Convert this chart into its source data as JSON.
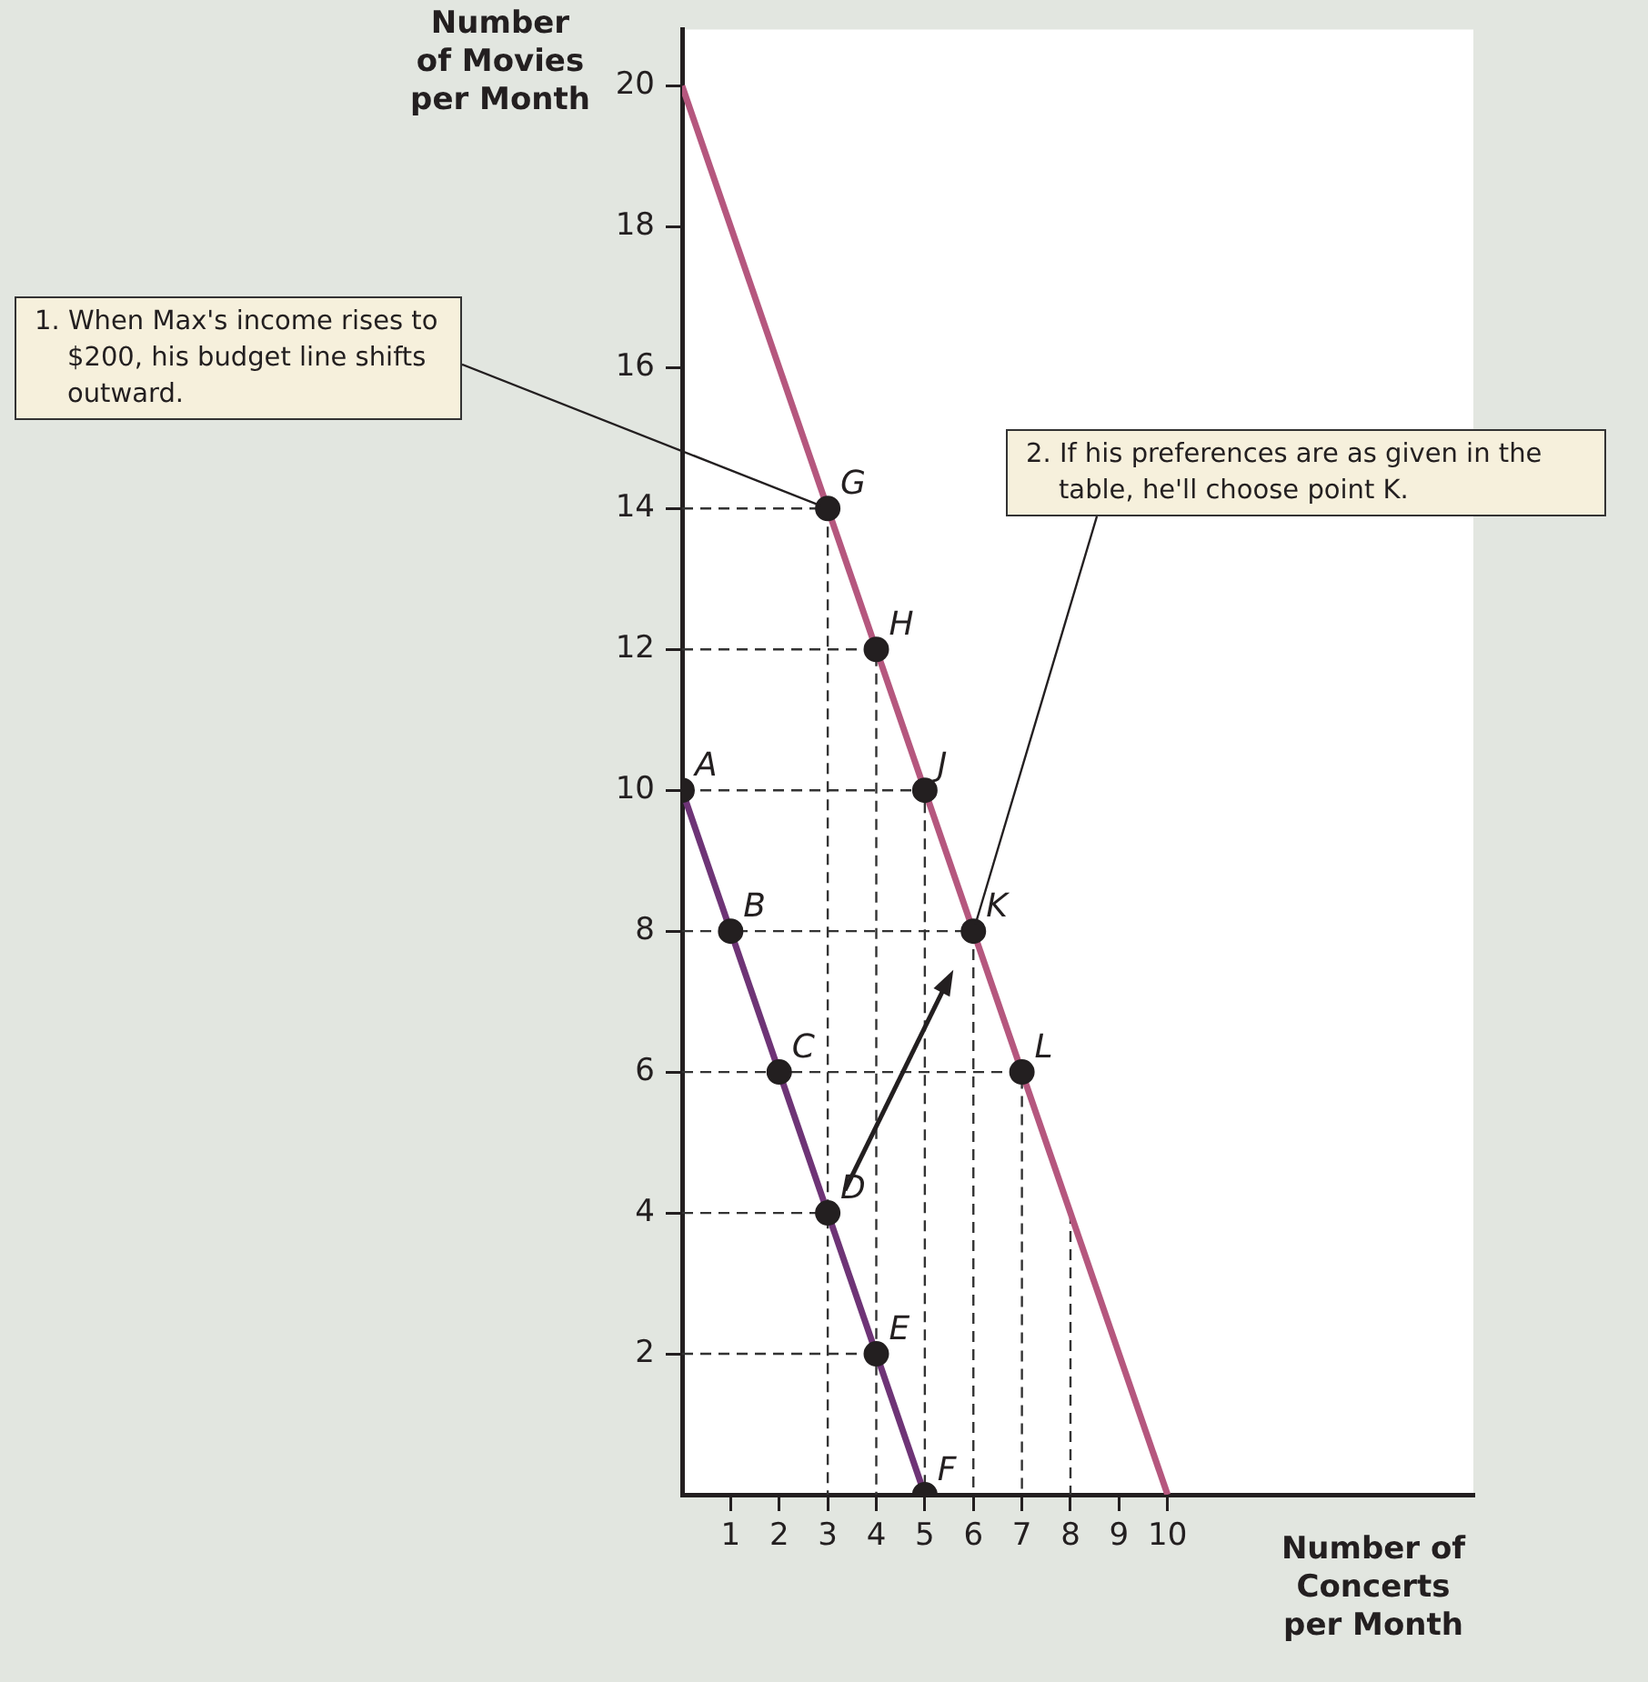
{
  "chart_data": {
    "type": "line",
    "xlabel": "Number of Concerts per Month",
    "ylabel": "Number of Movies per Month",
    "xlim": [
      0,
      16.3
    ],
    "ylim": [
      0,
      20.8
    ],
    "xticks": [
      1,
      2,
      3,
      4,
      5,
      6,
      7,
      8,
      9,
      10
    ],
    "yticks": [
      2,
      4,
      6,
      8,
      10,
      12,
      14,
      16,
      18,
      20
    ],
    "series": [
      {
        "type": "line",
        "color": "#333333",
        "line_style": "dashed",
        "marker": "none",
        "x": [
          0,
          3,
          3
        ],
        "values": [
          14,
          14,
          0
        ]
      },
      {
        "type": "line",
        "color": "#333333",
        "line_style": "dashed",
        "marker": "none",
        "x": [
          0,
          4,
          4
        ],
        "values": [
          12,
          12,
          0
        ]
      },
      {
        "type": "line",
        "color": "#333333",
        "line_style": "dashed",
        "marker": "none",
        "x": [
          0,
          5,
          5
        ],
        "values": [
          10,
          10,
          0
        ]
      },
      {
        "type": "line",
        "color": "#333333",
        "line_style": "dashed",
        "marker": "none",
        "x": [
          0,
          6,
          6
        ],
        "values": [
          8,
          8,
          0
        ]
      },
      {
        "type": "line",
        "color": "#333333",
        "line_style": "dashed",
        "marker": "none",
        "x": [
          0,
          7,
          7
        ],
        "values": [
          6,
          6,
          0
        ]
      },
      {
        "type": "line",
        "color": "#333333",
        "line_style": "dashed",
        "marker": "none",
        "x": [
          0,
          3
        ],
        "values": [
          4,
          4
        ]
      },
      {
        "type": "line",
        "color": "#333333",
        "line_style": "dashed",
        "marker": "none",
        "x": [
          0,
          4
        ],
        "values": [
          2,
          2
        ]
      },
      {
        "type": "line",
        "color": "#333333",
        "line_style": "dashed",
        "marker": "none",
        "x": [
          8,
          8
        ],
        "values": [
          4,
          0
        ]
      },
      {
        "type": "line",
        "color": "#6e3476",
        "line_style": "solid",
        "marker": "none",
        "x": [
          0,
          5
        ],
        "values": [
          10,
          0
        ]
      },
      {
        "type": "line",
        "color": "#b5577e",
        "line_style": "solid",
        "marker": "none",
        "x": [
          0,
          10
        ],
        "values": [
          20,
          0
        ]
      },
      {
        "type": "scatter",
        "color": "#231f20",
        "marker": "circle",
        "x": [
          0,
          1,
          2,
          3,
          4,
          5,
          3,
          4,
          5,
          6,
          7
        ],
        "values": [
          10,
          8,
          6,
          4,
          2,
          0,
          14,
          12,
          10,
          8,
          6
        ],
        "value_labels": [
          "A",
          "B",
          "C",
          "D",
          "E",
          "F",
          "G",
          "H",
          "J",
          "K",
          "L"
        ]
      }
    ],
    "annotations": [
      {
        "text": "1. When Max's income rises to $200, his budget line shifts outward.",
        "x": 3,
        "y": 14
      },
      {
        "text": "2. If his preferences are as given in the table, he'll choose point K.",
        "x": 6,
        "y": 8
      }
    ]
  }
}
